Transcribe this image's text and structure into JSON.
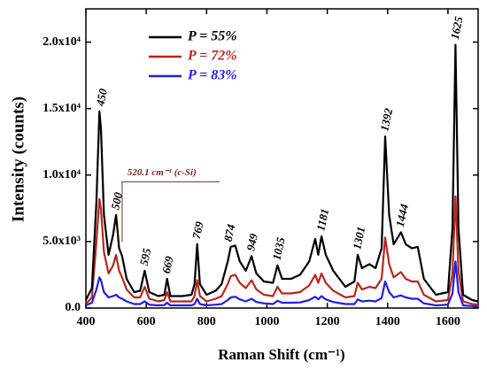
{
  "chart_data": {
    "type": "line",
    "x_label": "Raman Shift (cm⁻¹)",
    "y_label": "Intensity (counts)",
    "x": [
      400,
      420,
      435,
      445,
      450,
      460,
      475,
      490,
      500,
      510,
      520,
      535,
      560,
      580,
      595,
      610,
      640,
      660,
      669,
      680,
      720,
      750,
      760,
      769,
      778,
      800,
      830,
      850,
      870,
      880,
      895,
      910,
      930,
      949,
      965,
      990,
      1020,
      1035,
      1050,
      1080,
      1110,
      1140,
      1160,
      1170,
      1181,
      1195,
      1220,
      1260,
      1290,
      1301,
      1315,
      1340,
      1360,
      1380,
      1392,
      1405,
      1420,
      1444,
      1460,
      1480,
      1500,
      1520,
      1560,
      1600,
      1615,
      1625,
      1635,
      1650,
      1680,
      1700
    ],
    "series": [
      {
        "name": "P = 55%",
        "color": "#000000",
        "values": [
          600,
          1500,
          8000,
          14800,
          13500,
          7000,
          4000,
          5500,
          7000,
          4500,
          3900,
          2200,
          1200,
          1300,
          2800,
          1200,
          900,
          1000,
          2200,
          900,
          900,
          1000,
          1800,
          4800,
          1800,
          1000,
          1300,
          1800,
          3500,
          4600,
          4700,
          3500,
          2800,
          3900,
          2600,
          2000,
          1900,
          3200,
          2200,
          2200,
          2500,
          3500,
          5200,
          4000,
          5400,
          4000,
          2800,
          1600,
          2000,
          4000,
          3000,
          3300,
          3000,
          4500,
          12900,
          7000,
          4800,
          5700,
          4800,
          4500,
          4600,
          2200,
          1000,
          1200,
          6000,
          19800,
          6000,
          1000,
          600,
          500
        ]
      },
      {
        "name": "P = 72%",
        "color": "#b5281c",
        "values": [
          300,
          800,
          5000,
          8200,
          7500,
          4200,
          2600,
          3200,
          4000,
          2800,
          2300,
          1400,
          800,
          800,
          1600,
          700,
          500,
          600,
          1200,
          500,
          500,
          500,
          900,
          2100,
          900,
          500,
          700,
          900,
          1800,
          2400,
          2500,
          1900,
          1500,
          2100,
          1400,
          1000,
          900,
          1600,
          1100,
          1100,
          1200,
          1700,
          2500,
          1900,
          2600,
          1900,
          1300,
          800,
          900,
          1900,
          1400,
          1600,
          1500,
          2200,
          5300,
          3300,
          2300,
          2700,
          2200,
          2000,
          2000,
          1000,
          500,
          600,
          2600,
          8400,
          2800,
          500,
          300,
          250
        ]
      },
      {
        "name": "P = 83%",
        "color": "#1f1fe0",
        "values": [
          200,
          400,
          1400,
          2300,
          2100,
          1200,
          800,
          900,
          1000,
          800,
          700,
          500,
          300,
          300,
          500,
          250,
          200,
          220,
          400,
          200,
          200,
          200,
          300,
          700,
          300,
          200,
          250,
          300,
          600,
          800,
          850,
          650,
          500,
          700,
          450,
          350,
          300,
          550,
          400,
          400,
          420,
          600,
          850,
          650,
          900,
          650,
          450,
          300,
          300,
          650,
          500,
          550,
          500,
          750,
          2000,
          1200,
          800,
          950,
          800,
          700,
          700,
          350,
          200,
          250,
          1100,
          3500,
          1200,
          200,
          150,
          100
        ]
      }
    ],
    "xlim": [
      400,
      1700
    ],
    "xticks": [
      400,
      600,
      800,
      1000,
      1200,
      1400,
      1600
    ],
    "ylim": [
      0,
      22500
    ],
    "yticks": [
      {
        "value": 0,
        "label": "0.0"
      },
      {
        "value": 5000,
        "label": "5.0x10³"
      },
      {
        "value": 10000,
        "label": "1.0x10⁴"
      },
      {
        "value": 15000,
        "label": "1.5x10⁴"
      },
      {
        "value": 20000,
        "label": "2.0x10⁴"
      }
    ],
    "legend": "upper left",
    "annotations": [
      "450",
      "500",
      "595",
      "669",
      "769",
      "874",
      "949",
      "1035",
      "1181",
      "1301",
      "1392",
      "1444",
      "1625"
    ],
    "callout": "520.1 cm⁻¹ (c-Si)"
  }
}
